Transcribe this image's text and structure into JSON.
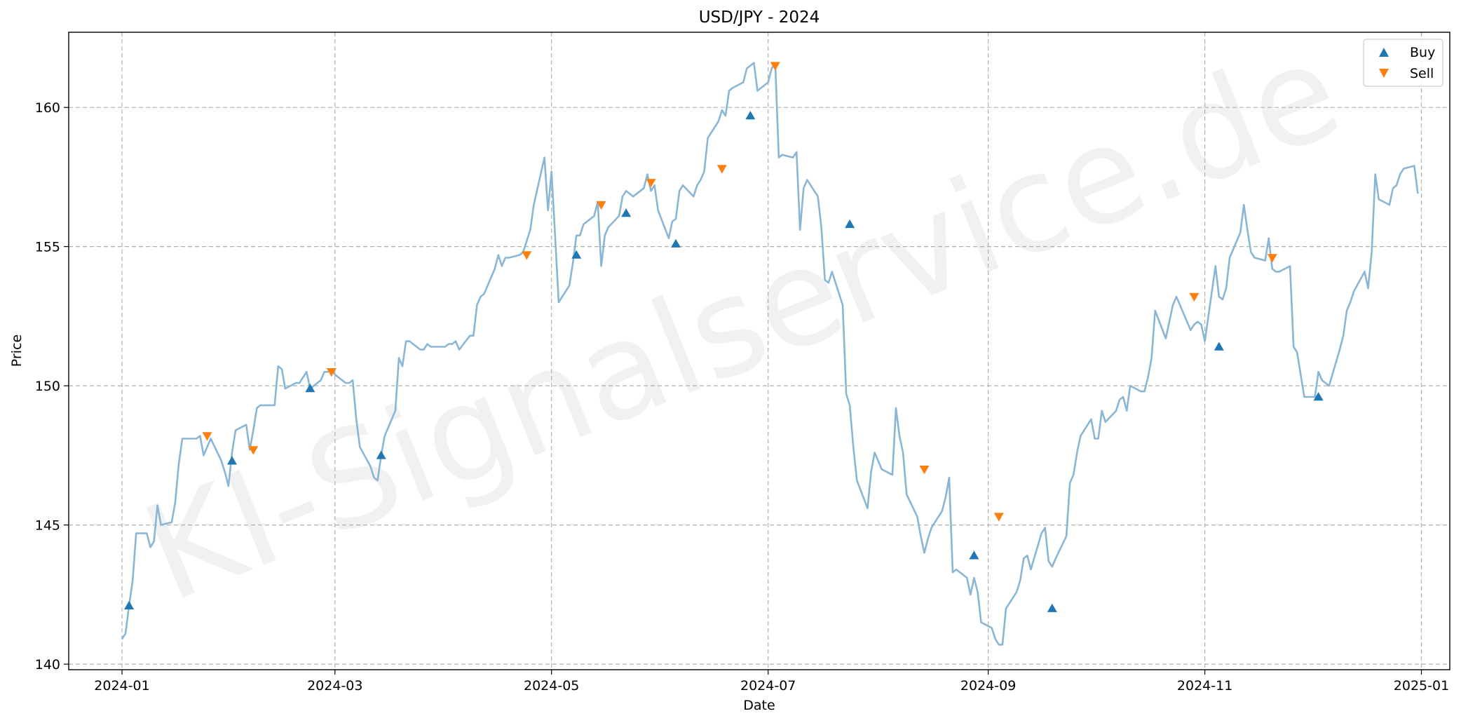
{
  "chart_data": {
    "type": "line",
    "title": "USD/JPY - 2024",
    "xlabel": "Date",
    "ylabel": "Price",
    "watermark": "KI-Signalservice.de",
    "xlim": [
      "2023-12-17",
      "2025-01-09"
    ],
    "ylim": [
      139.8,
      162.7
    ],
    "x_ticks": [
      "2024-01",
      "2024-03",
      "2024-05",
      "2024-07",
      "2024-09",
      "2024-11",
      "2025-01"
    ],
    "y_ticks": [
      140,
      145,
      150,
      155,
      160
    ],
    "grid": true,
    "legend_position": "top-right",
    "colors": {
      "price": "#8ab6d6",
      "buy": "#1f77b4",
      "sell": "#ff7f0e",
      "grid": "#b0b0b0"
    },
    "series": [
      {
        "name": "",
        "kind": "line",
        "x": [
          "2024-01-01",
          "2024-01-02",
          "2024-01-03",
          "2024-01-04",
          "2024-01-05",
          "2024-01-08",
          "2024-01-09",
          "2024-01-10",
          "2024-01-11",
          "2024-01-12",
          "2024-01-15",
          "2024-01-16",
          "2024-01-17",
          "2024-01-18",
          "2024-01-19",
          "2024-01-22",
          "2024-01-23",
          "2024-01-24",
          "2024-01-25",
          "2024-01-26",
          "2024-01-29",
          "2024-01-30",
          "2024-01-31",
          "2024-02-01",
          "2024-02-02",
          "2024-02-05",
          "2024-02-06",
          "2024-02-07",
          "2024-02-08",
          "2024-02-09",
          "2024-02-12",
          "2024-02-13",
          "2024-02-14",
          "2024-02-15",
          "2024-02-16",
          "2024-02-19",
          "2024-02-20",
          "2024-02-21",
          "2024-02-22",
          "2024-02-23",
          "2024-02-26",
          "2024-02-27",
          "2024-02-28",
          "2024-02-29",
          "2024-03-01",
          "2024-03-04",
          "2024-03-05",
          "2024-03-06",
          "2024-03-07",
          "2024-03-08",
          "2024-03-11",
          "2024-03-12",
          "2024-03-13",
          "2024-03-14",
          "2024-03-15",
          "2024-03-18",
          "2024-03-19",
          "2024-03-20",
          "2024-03-21",
          "2024-03-22",
          "2024-03-25",
          "2024-03-26",
          "2024-03-27",
          "2024-03-28",
          "2024-03-29",
          "2024-04-01",
          "2024-04-02",
          "2024-04-03",
          "2024-04-04",
          "2024-04-05",
          "2024-04-08",
          "2024-04-09",
          "2024-04-10",
          "2024-04-11",
          "2024-04-12",
          "2024-04-15",
          "2024-04-16",
          "2024-04-17",
          "2024-04-18",
          "2024-04-19",
          "2024-04-22",
          "2024-04-23",
          "2024-04-24",
          "2024-04-25",
          "2024-04-26",
          "2024-04-29",
          "2024-04-30",
          "2024-05-01",
          "2024-05-02",
          "2024-05-03",
          "2024-05-06",
          "2024-05-07",
          "2024-05-08",
          "2024-05-09",
          "2024-05-10",
          "2024-05-13",
          "2024-05-14",
          "2024-05-15",
          "2024-05-16",
          "2024-05-17",
          "2024-05-20",
          "2024-05-21",
          "2024-05-22",
          "2024-05-23",
          "2024-05-24",
          "2024-05-27",
          "2024-05-28",
          "2024-05-29",
          "2024-05-30",
          "2024-05-31",
          "2024-06-03",
          "2024-06-04",
          "2024-06-05",
          "2024-06-06",
          "2024-06-07",
          "2024-06-10",
          "2024-06-11",
          "2024-06-12",
          "2024-06-13",
          "2024-06-14",
          "2024-06-17",
          "2024-06-18",
          "2024-06-19",
          "2024-06-20",
          "2024-06-21",
          "2024-06-24",
          "2024-06-25",
          "2024-06-26",
          "2024-06-27",
          "2024-06-28",
          "2024-07-01",
          "2024-07-02",
          "2024-07-03",
          "2024-07-04",
          "2024-07-05",
          "2024-07-08",
          "2024-07-09",
          "2024-07-10",
          "2024-07-11",
          "2024-07-12",
          "2024-07-15",
          "2024-07-16",
          "2024-07-17",
          "2024-07-18",
          "2024-07-19",
          "2024-07-22",
          "2024-07-23",
          "2024-07-24",
          "2024-07-25",
          "2024-07-26",
          "2024-07-29",
          "2024-07-30",
          "2024-07-31",
          "2024-08-01",
          "2024-08-02",
          "2024-08-05",
          "2024-08-06",
          "2024-08-07",
          "2024-08-08",
          "2024-08-09",
          "2024-08-12",
          "2024-08-13",
          "2024-08-14",
          "2024-08-15",
          "2024-08-16",
          "2024-08-19",
          "2024-08-20",
          "2024-08-21",
          "2024-08-22",
          "2024-08-23",
          "2024-08-26",
          "2024-08-27",
          "2024-08-28",
          "2024-08-29",
          "2024-08-30",
          "2024-09-02",
          "2024-09-03",
          "2024-09-04",
          "2024-09-05",
          "2024-09-06",
          "2024-09-09",
          "2024-09-10",
          "2024-09-11",
          "2024-09-12",
          "2024-09-13",
          "2024-09-16",
          "2024-09-17",
          "2024-09-18",
          "2024-09-19",
          "2024-09-20",
          "2024-09-23",
          "2024-09-24",
          "2024-09-25",
          "2024-09-26",
          "2024-09-27",
          "2024-09-30",
          "2024-10-01",
          "2024-10-02",
          "2024-10-03",
          "2024-10-04",
          "2024-10-07",
          "2024-10-08",
          "2024-10-09",
          "2024-10-10",
          "2024-10-11",
          "2024-10-14",
          "2024-10-15",
          "2024-10-16",
          "2024-10-17",
          "2024-10-18",
          "2024-10-21",
          "2024-10-22",
          "2024-10-23",
          "2024-10-24",
          "2024-10-25",
          "2024-10-28",
          "2024-10-29",
          "2024-10-30",
          "2024-10-31",
          "2024-11-01",
          "2024-11-04",
          "2024-11-05",
          "2024-11-06",
          "2024-11-07",
          "2024-11-08",
          "2024-11-11",
          "2024-11-12",
          "2024-11-13",
          "2024-11-14",
          "2024-11-15",
          "2024-11-18",
          "2024-11-19",
          "2024-11-20",
          "2024-11-21",
          "2024-11-22",
          "2024-11-25",
          "2024-11-26",
          "2024-11-27",
          "2024-11-28",
          "2024-11-29",
          "2024-12-02",
          "2024-12-03",
          "2024-12-04",
          "2024-12-05",
          "2024-12-06",
          "2024-12-09",
          "2024-12-10",
          "2024-12-11",
          "2024-12-12",
          "2024-12-13",
          "2024-12-16",
          "2024-12-17",
          "2024-12-18",
          "2024-12-19",
          "2024-12-20",
          "2024-12-23",
          "2024-12-24",
          "2024-12-25",
          "2024-12-26",
          "2024-12-27",
          "2024-12-30",
          "2024-12-31"
        ],
        "y": [
          140.9,
          141.1,
          142.1,
          143.0,
          144.7,
          144.7,
          144.2,
          144.4,
          145.7,
          145.0,
          145.1,
          145.8,
          147.2,
          148.1,
          148.1,
          148.1,
          148.2,
          147.5,
          147.8,
          148.1,
          147.3,
          146.9,
          146.4,
          147.6,
          148.4,
          148.6,
          147.7,
          148.4,
          149.2,
          149.3,
          149.3,
          149.3,
          150.7,
          150.6,
          149.9,
          150.1,
          150.1,
          150.3,
          150.5,
          149.9,
          150.2,
          150.5,
          150.5,
          150.6,
          150.4,
          150.1,
          150.1,
          150.2,
          148.8,
          147.8,
          147.1,
          146.7,
          146.6,
          147.5,
          148.2,
          149.1,
          151.0,
          150.7,
          151.6,
          151.6,
          151.3,
          151.3,
          151.5,
          151.4,
          151.4,
          151.4,
          151.5,
          151.5,
          151.6,
          151.3,
          151.8,
          151.8,
          152.9,
          153.2,
          153.3,
          154.2,
          154.7,
          154.3,
          154.6,
          154.6,
          154.7,
          154.8,
          155.2,
          155.6,
          156.5,
          158.2,
          156.3,
          157.7,
          155.4,
          153.0,
          153.6,
          154.4,
          155.4,
          155.4,
          155.8,
          156.1,
          156.6,
          154.3,
          155.4,
          155.7,
          156.1,
          156.8,
          157.0,
          156.9,
          156.8,
          157.1,
          157.6,
          157.0,
          157.2,
          156.3,
          155.3,
          155.9,
          156.0,
          157.0,
          157.2,
          156.8,
          157.2,
          157.4,
          157.7,
          158.9,
          159.5,
          159.9,
          159.7,
          160.6,
          160.7,
          160.9,
          161.4,
          161.5,
          161.6,
          160.6,
          160.9,
          161.4,
          161.6,
          158.2,
          158.3,
          158.2,
          158.4,
          155.6,
          157.1,
          157.4,
          156.8,
          155.7,
          153.8,
          153.7,
          154.1,
          152.9,
          149.7,
          149.3,
          147.8,
          146.6,
          145.6,
          146.9,
          147.6,
          147.3,
          147.0,
          146.8,
          149.2,
          148.2,
          147.6,
          146.1,
          145.3,
          144.6,
          144.0,
          144.5,
          144.9,
          145.5,
          146.0,
          146.7,
          143.3,
          143.4,
          143.1,
          142.5,
          143.1,
          142.6,
          141.5,
          141.3,
          140.9,
          140.7,
          140.7,
          142.0,
          142.6,
          143.0,
          143.8,
          143.9,
          143.4,
          144.7,
          144.9,
          143.7,
          143.5,
          143.8,
          144.6,
          146.5,
          146.8,
          147.6,
          148.2,
          148.8,
          148.1,
          148.1,
          149.1,
          148.7,
          149.1,
          149.5,
          149.6,
          149.1,
          150.0,
          149.8,
          149.8,
          150.3,
          151.0,
          152.7,
          151.7,
          152.3,
          152.9,
          153.2,
          152.9,
          152.0,
          152.2,
          152.3,
          152.2,
          151.6,
          154.3,
          153.2,
          153.1,
          153.5,
          154.6,
          155.5,
          156.5,
          155.6,
          154.8,
          154.6,
          154.5,
          155.3,
          154.2,
          154.1,
          154.1,
          154.3,
          151.4,
          151.2,
          150.4,
          149.6,
          149.6,
          150.5,
          150.2,
          150.1,
          150.0,
          151.3,
          151.8,
          152.7,
          153.0,
          153.4,
          154.1,
          153.5,
          154.8,
          157.6,
          156.7,
          156.5,
          157.1,
          157.2,
          157.6,
          157.8,
          157.9,
          156.9
        ]
      },
      {
        "name": "Buy",
        "kind": "scatter",
        "marker": "triangle-up",
        "x": [
          "2024-01-03",
          "2024-02-01",
          "2024-02-23",
          "2024-03-14",
          "2024-05-08",
          "2024-05-22",
          "2024-06-05",
          "2024-06-26",
          "2024-07-24",
          "2024-08-28",
          "2024-09-19",
          "2024-11-05",
          "2024-12-03"
        ],
        "y": [
          142.1,
          147.3,
          149.9,
          147.5,
          154.7,
          156.2,
          155.1,
          159.7,
          155.8,
          143.9,
          142.0,
          151.4,
          149.6
        ]
      },
      {
        "name": "Sell",
        "kind": "scatter",
        "marker": "triangle-down",
        "x": [
          "2024-01-25",
          "2024-02-07",
          "2024-02-29",
          "2024-04-24",
          "2024-05-15",
          "2024-05-29",
          "2024-06-18",
          "2024-07-03",
          "2024-08-14",
          "2024-09-04",
          "2024-10-29",
          "2024-11-20"
        ],
        "y": [
          148.2,
          147.7,
          150.5,
          154.7,
          156.5,
          157.3,
          157.8,
          161.5,
          147.0,
          145.3,
          153.2,
          154.6
        ]
      }
    ]
  }
}
